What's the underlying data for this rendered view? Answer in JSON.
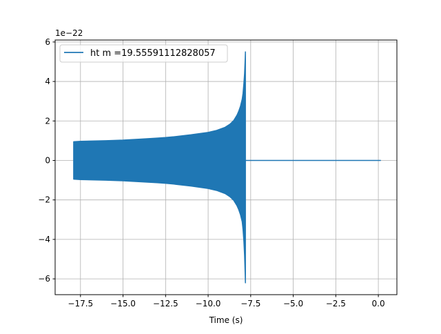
{
  "chart_data": {
    "type": "line",
    "title": "",
    "xlabel": "Time (s)",
    "ylabel": "",
    "y_offset_label": "1e−22",
    "xlim": [
      -18.99,
      1.09
    ],
    "ylim": [
      -6.8,
      6.1
    ],
    "grid": true,
    "legend_placement": "top-left",
    "x_ticks": [
      -17.5,
      -15.0,
      -12.5,
      -10.0,
      -7.5,
      -5.0,
      -2.5,
      0.0
    ],
    "x_tick_labels": [
      "−17.5",
      "−15.0",
      "−12.5",
      "−10.0",
      "−7.5",
      "−5.0",
      "−2.5",
      "0.0"
    ],
    "y_ticks": [
      -6,
      -4,
      -2,
      0,
      2,
      4,
      6
    ],
    "y_tick_labels": [
      "−6",
      "−4",
      "−2",
      "0",
      "2",
      "4",
      "6"
    ],
    "series": [
      {
        "name": "ht m =19.55591112828057",
        "color": "#1f77b4",
        "note_units": "1e-22",
        "envelope_time": [
          -17.9,
          -17.5,
          -16,
          -15,
          -14,
          -13,
          -12.5,
          -12,
          -11,
          -10,
          -9.5,
          -9,
          -8.7,
          -8.5,
          -8.3,
          -8.2,
          -8.1,
          -8.0,
          -7.95,
          -7.9,
          -7.86,
          -7.83,
          -7.81
        ],
        "envelope_upper": [
          0.95,
          0.97,
          1.0,
          1.03,
          1.08,
          1.13,
          1.16,
          1.2,
          1.3,
          1.42,
          1.52,
          1.68,
          1.85,
          2.02,
          2.3,
          2.5,
          2.75,
          3.1,
          3.4,
          3.9,
          4.4,
          5.0,
          5.5
        ],
        "envelope_lower": [
          -0.95,
          -0.97,
          -1.0,
          -1.03,
          -1.08,
          -1.13,
          -1.16,
          -1.2,
          -1.3,
          -1.42,
          -1.52,
          -1.68,
          -1.85,
          -2.02,
          -2.3,
          -2.5,
          -2.75,
          -3.1,
          -3.5,
          -4.1,
          -4.8,
          -5.6,
          -6.2
        ],
        "post_merger": {
          "x": [
            -7.81,
            0.15
          ],
          "y": [
            0,
            0
          ]
        }
      }
    ]
  }
}
